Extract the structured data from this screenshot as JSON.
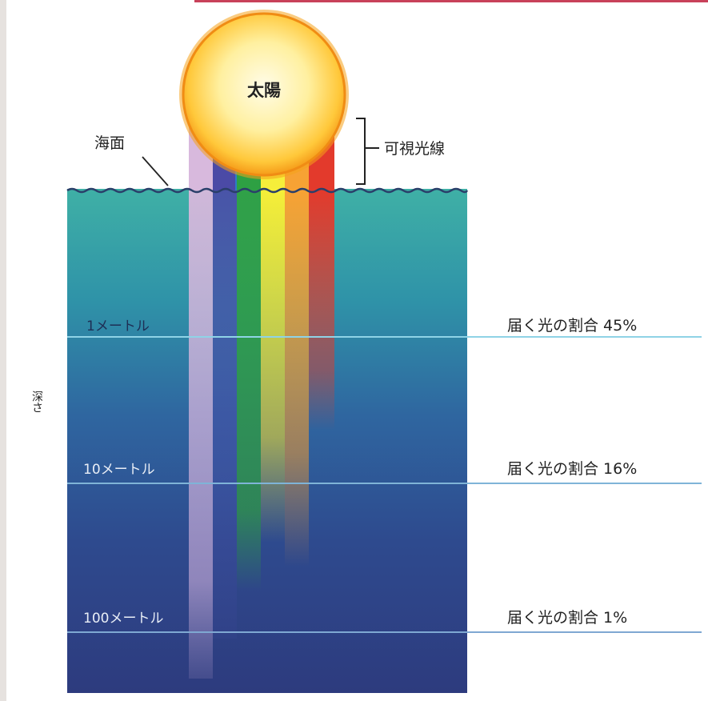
{
  "diagram": {
    "sun_label": "太陽",
    "sea_surface_label": "海面",
    "visible_light_label": "可視光線",
    "depth_axis_label": "深さ",
    "depth_levels": [
      {
        "depth": "1メートル",
        "ratio_label": "届く光の割合 45%"
      },
      {
        "depth": "10メートル",
        "ratio_label": "届く光の割合 16%"
      },
      {
        "depth": "100メートル",
        "ratio_label": "届く光の割合 1%"
      }
    ]
  }
}
